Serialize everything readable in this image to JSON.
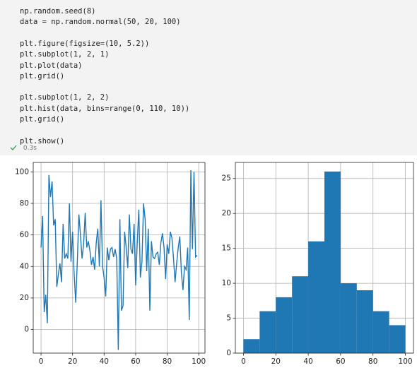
{
  "code": {
    "blocks": [
      [
        "np.random.seed(8)",
        "data = np.random.normal(50, 20, 100)"
      ],
      [
        "plt.figure(figsize=(10, 5.2))",
        "plt.subplot(1, 2, 1)",
        "plt.plot(data)",
        "plt.grid()"
      ],
      [
        "plt.subplot(1, 2, 2)",
        "plt.hist(data, bins=range(0, 110, 10))",
        "plt.grid()"
      ],
      [
        "plt.show()"
      ]
    ],
    "duration": "0.3s"
  },
  "chart_data": [
    {
      "type": "line",
      "color": "#1f77b4",
      "grid": true,
      "x": [
        0,
        1,
        2,
        3,
        4,
        5,
        6,
        7,
        8,
        9,
        10,
        11,
        12,
        13,
        14,
        15,
        16,
        17,
        18,
        19,
        20,
        21,
        22,
        23,
        24,
        25,
        26,
        27,
        28,
        29,
        30,
        31,
        32,
        33,
        34,
        35,
        36,
        37,
        38,
        39,
        40,
        41,
        42,
        43,
        44,
        45,
        46,
        47,
        48,
        49,
        50,
        51,
        52,
        53,
        54,
        55,
        56,
        57,
        58,
        59,
        60,
        61,
        62,
        63,
        64,
        65,
        66,
        67,
        68,
        69,
        70,
        71,
        72,
        73,
        74,
        75,
        76,
        77,
        78,
        79,
        80,
        81,
        82,
        83,
        84,
        85,
        86,
        87,
        88,
        89,
        90,
        91,
        92,
        93,
        94,
        95,
        96,
        97,
        98,
        99
      ],
      "values": [
        52,
        72,
        11,
        22,
        4,
        98,
        84,
        94,
        66,
        70,
        27,
        35,
        42,
        30,
        67,
        45,
        48,
        45,
        80,
        43,
        62,
        35,
        17,
        43,
        73,
        60,
        45,
        54,
        74,
        52,
        56,
        50,
        41,
        46,
        38,
        55,
        64,
        40,
        82,
        40,
        33,
        21,
        52,
        44,
        51,
        52,
        46,
        51,
        45,
        -13,
        70,
        12,
        15,
        62,
        52,
        39,
        73,
        51,
        48,
        67,
        28,
        55,
        76,
        33,
        43,
        80,
        70,
        37,
        64,
        12,
        56,
        46,
        45,
        48,
        49,
        41,
        55,
        61,
        52,
        32,
        54,
        48,
        62,
        58,
        45,
        30,
        42,
        52,
        59,
        36,
        25,
        40,
        38,
        52,
        6,
        101,
        51,
        100,
        46,
        47
      ],
      "xlim": [
        -4.95,
        103.95
      ],
      "ylim": [
        -15,
        106
      ],
      "xticks": [
        0,
        20,
        40,
        60,
        80,
        100
      ],
      "yticks": [
        0,
        20,
        40,
        60,
        80,
        100
      ]
    },
    {
      "type": "histogram",
      "color": "#1f77b4",
      "grid": true,
      "bins": [
        0,
        10,
        20,
        30,
        40,
        50,
        60,
        70,
        80,
        90,
        100
      ],
      "values": [
        2,
        6,
        8,
        11,
        16,
        26,
        10,
        9,
        6,
        4
      ],
      "xlim": [
        -5,
        105
      ],
      "ylim": [
        0,
        27.3
      ],
      "xticks": [
        0,
        20,
        40,
        60,
        80,
        100
      ],
      "yticks": [
        0,
        5,
        10,
        15,
        20,
        25
      ]
    }
  ]
}
